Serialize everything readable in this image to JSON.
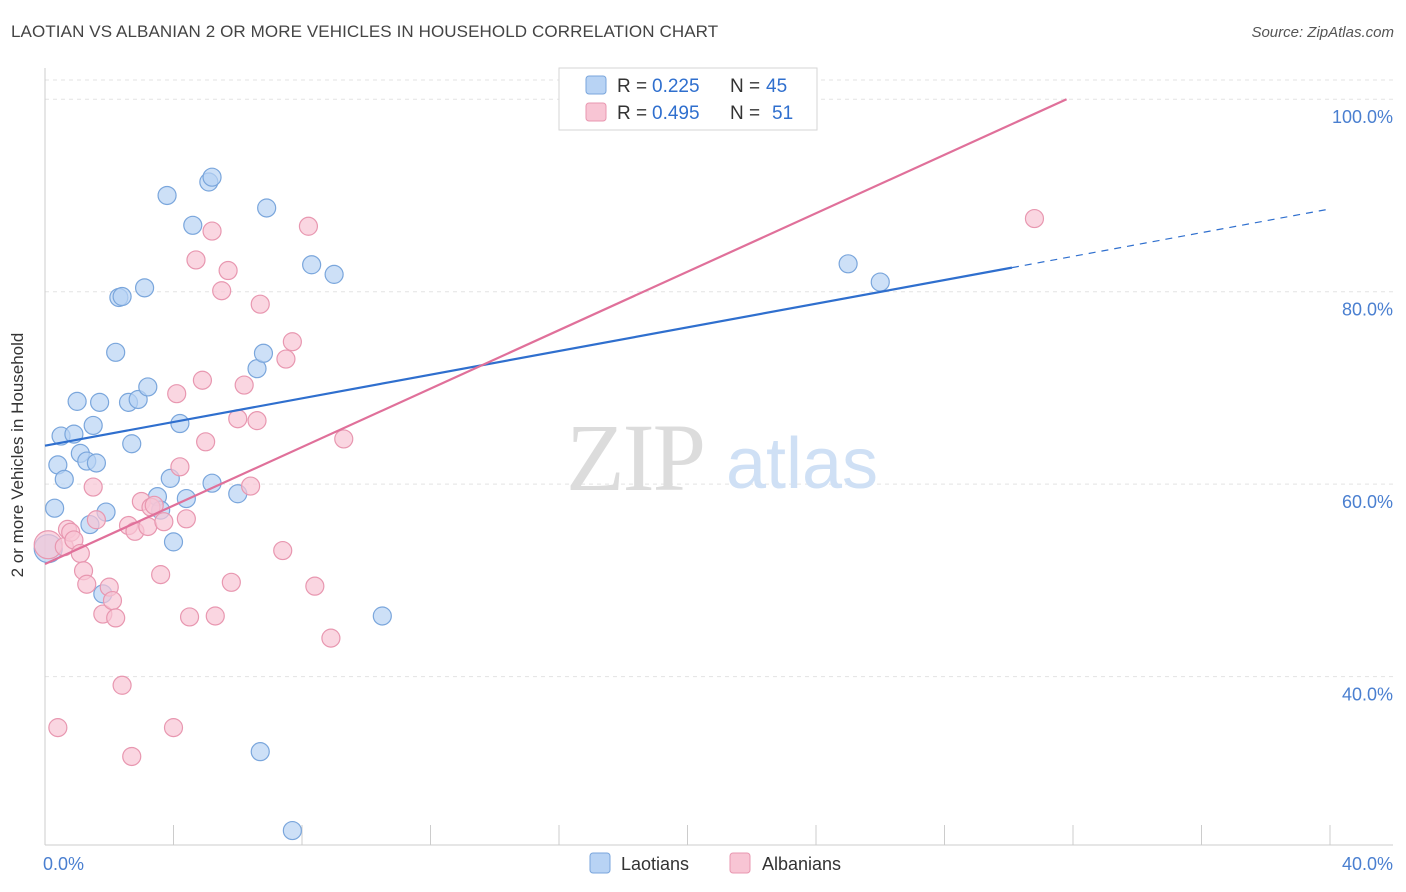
{
  "chart_data": {
    "type": "scatter",
    "title": "LAOTIAN VS ALBANIAN 2 OR MORE VEHICLES IN HOUSEHOLD CORRELATION CHART",
    "source": "Source: ZipAtlas.com",
    "xlabel": "",
    "ylabel": "2 or more Vehicles in Household",
    "xlim": [
      0,
      40
    ],
    "ylim": [
      22.5,
      102
    ],
    "x_tick_labels": [
      "0.0%",
      "40.0%"
    ],
    "y_ticks": [
      40,
      60,
      80,
      100
    ],
    "y_tick_labels": [
      "40.0%",
      "60.0%",
      "80.0%",
      "100.0%"
    ],
    "grid": true,
    "watermark": {
      "zip": "ZIP",
      "atlas": "atlas"
    },
    "legend_position": "top-center",
    "legend": [
      {
        "r_label": "R =",
        "r_value": "0.225",
        "n_label": "N =",
        "n_value": "45"
      },
      {
        "r_label": "R =",
        "r_value": "0.495",
        "n_label": "N =",
        "n_value": "51"
      }
    ],
    "bottom_legend": [
      "Laotians",
      "Albanians"
    ],
    "colors": {
      "laotians_fill": "#b8d3f4",
      "laotians_stroke": "#7aa6dc",
      "laotians_line": "#2f6fce",
      "albanians_fill": "#f8c5d4",
      "albanians_stroke": "#e897b0",
      "albanians_line": "#e0709a",
      "tick_label": "#4a7fd0",
      "grid": "#e3e3e3"
    },
    "series": [
      {
        "name": "Laotians",
        "trend": {
          "x": [
            0,
            30.1
          ],
          "y": [
            64.0,
            82.5
          ],
          "dashed_to": {
            "x": 40,
            "y": 88.6
          }
        },
        "points": [
          [
            0.1,
            53.3,
            14
          ],
          [
            0.3,
            57.5,
            9
          ],
          [
            0.4,
            62.0,
            9
          ],
          [
            0.5,
            65.0,
            9
          ],
          [
            0.6,
            60.5,
            9
          ],
          [
            0.9,
            65.2,
            9
          ],
          [
            1.0,
            68.6,
            9
          ],
          [
            1.1,
            63.2,
            9
          ],
          [
            1.3,
            62.4,
            9
          ],
          [
            1.4,
            55.8,
            9
          ],
          [
            1.5,
            66.1,
            9
          ],
          [
            1.6,
            62.2,
            9
          ],
          [
            1.7,
            68.5,
            9
          ],
          [
            1.8,
            48.6,
            9
          ],
          [
            1.9,
            57.1,
            9
          ],
          [
            2.2,
            73.7,
            9
          ],
          [
            2.3,
            79.4,
            9
          ],
          [
            2.4,
            79.5,
            9
          ],
          [
            2.6,
            68.5,
            9
          ],
          [
            2.7,
            64.2,
            9
          ],
          [
            2.9,
            68.8,
            9
          ],
          [
            3.1,
            80.4,
            9
          ],
          [
            3.2,
            70.1,
            9
          ],
          [
            3.5,
            58.7,
            9
          ],
          [
            3.6,
            57.3,
            9
          ],
          [
            3.8,
            90.0,
            9
          ],
          [
            3.9,
            60.6,
            9
          ],
          [
            4.0,
            54.0,
            9
          ],
          [
            4.2,
            66.3,
            9
          ],
          [
            4.4,
            58.5,
            9
          ],
          [
            4.6,
            86.9,
            9
          ],
          [
            5.1,
            91.4,
            9
          ],
          [
            5.2,
            91.9,
            9
          ],
          [
            5.2,
            60.1,
            9
          ],
          [
            6.0,
            59.0,
            9
          ],
          [
            6.6,
            72.0,
            9
          ],
          [
            6.8,
            73.6,
            9
          ],
          [
            6.9,
            88.7,
            9
          ],
          [
            6.7,
            32.2,
            9
          ],
          [
            7.7,
            24.0,
            9
          ],
          [
            8.3,
            82.8,
            9
          ],
          [
            9.0,
            81.8,
            9
          ],
          [
            10.5,
            46.3,
            9
          ],
          [
            25.0,
            82.9,
            9
          ],
          [
            26.0,
            81.0,
            9
          ]
        ]
      },
      {
        "name": "Albanians",
        "trend": {
          "x": [
            0,
            31.8
          ],
          "y": [
            51.7,
            100.0
          ]
        },
        "points": [
          [
            0.1,
            53.7,
            14
          ],
          [
            0.4,
            34.7,
            9
          ],
          [
            0.6,
            53.5,
            9
          ],
          [
            0.7,
            55.3,
            9
          ],
          [
            0.8,
            55.0,
            9
          ],
          [
            0.9,
            54.2,
            9
          ],
          [
            1.1,
            52.8,
            9
          ],
          [
            1.2,
            51.0,
            9
          ],
          [
            1.3,
            49.6,
            9
          ],
          [
            1.5,
            59.7,
            9
          ],
          [
            1.6,
            56.3,
            9
          ],
          [
            1.8,
            46.5,
            9
          ],
          [
            2.0,
            49.3,
            9
          ],
          [
            2.1,
            47.9,
            9
          ],
          [
            2.2,
            46.1,
            9
          ],
          [
            2.4,
            39.1,
            9
          ],
          [
            2.6,
            55.7,
            9
          ],
          [
            2.7,
            31.7,
            9
          ],
          [
            2.8,
            55.1,
            9
          ],
          [
            3.0,
            58.2,
            9
          ],
          [
            3.2,
            55.6,
            9
          ],
          [
            3.3,
            57.6,
            9
          ],
          [
            3.4,
            57.8,
            9
          ],
          [
            3.6,
            50.6,
            9
          ],
          [
            3.7,
            56.1,
            9
          ],
          [
            4.0,
            34.7,
            9
          ],
          [
            4.1,
            69.4,
            9
          ],
          [
            4.2,
            61.8,
            9
          ],
          [
            4.4,
            56.4,
            9
          ],
          [
            4.5,
            46.2,
            9
          ],
          [
            4.7,
            83.3,
            9
          ],
          [
            4.9,
            70.8,
            9
          ],
          [
            5.0,
            64.4,
            9
          ],
          [
            5.2,
            86.3,
            9
          ],
          [
            5.3,
            46.3,
            9
          ],
          [
            5.5,
            80.1,
            9
          ],
          [
            5.7,
            82.2,
            9
          ],
          [
            5.8,
            49.8,
            9
          ],
          [
            6.0,
            66.8,
            9
          ],
          [
            6.2,
            70.3,
            9
          ],
          [
            6.4,
            59.8,
            9
          ],
          [
            6.6,
            66.6,
            9
          ],
          [
            6.7,
            78.7,
            9
          ],
          [
            7.4,
            53.1,
            9
          ],
          [
            7.5,
            73.0,
            9
          ],
          [
            7.7,
            74.8,
            9
          ],
          [
            8.2,
            86.8,
            9
          ],
          [
            8.4,
            49.4,
            9
          ],
          [
            8.9,
            44.0,
            9
          ],
          [
            9.3,
            64.7,
            9
          ],
          [
            30.8,
            87.6,
            9
          ]
        ]
      }
    ]
  }
}
